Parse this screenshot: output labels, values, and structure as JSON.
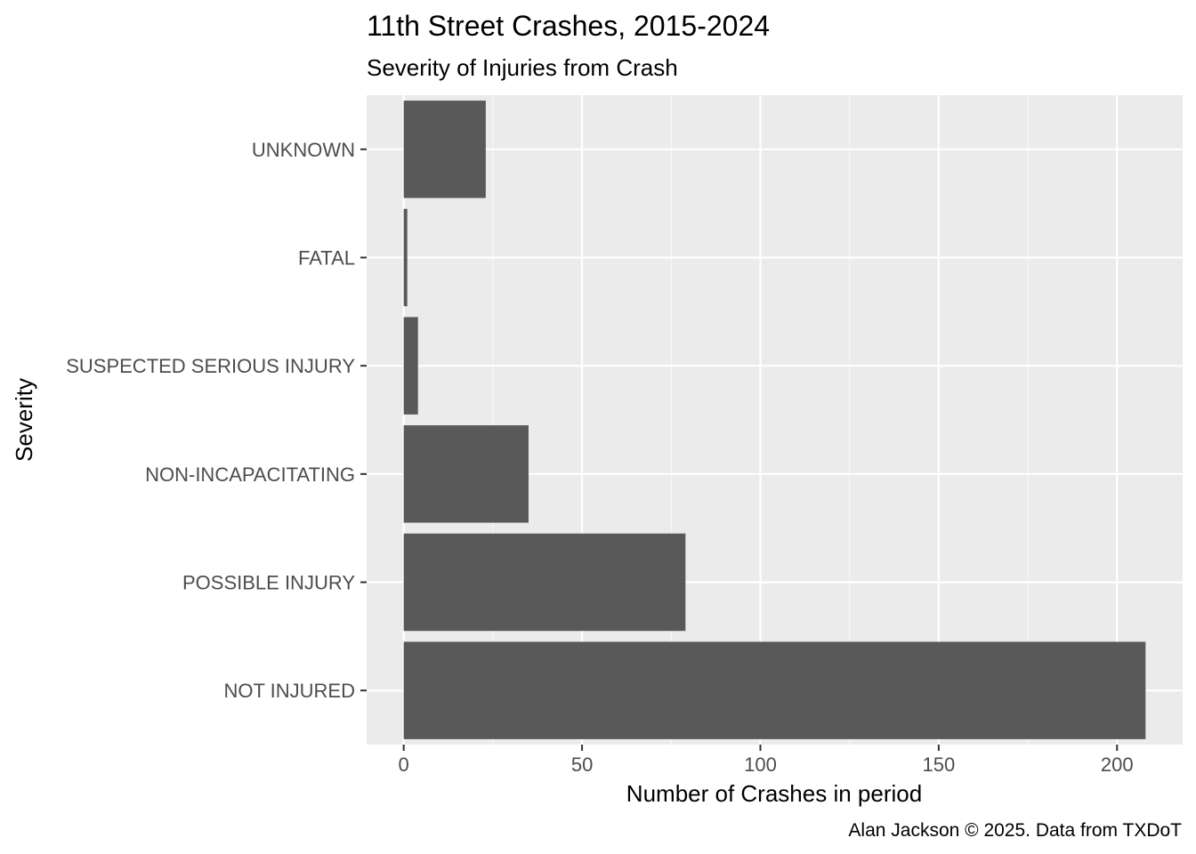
{
  "chart_data": {
    "type": "bar",
    "orientation": "horizontal",
    "title": "11th Street Crashes, 2015-2024",
    "subtitle": "Severity of Injuries from Crash",
    "xlabel": "Number of Crashes in period",
    "ylabel": "Severity",
    "caption": "Alan Jackson © 2025. Data from TXDoT",
    "categories": [
      "NOT INJURED",
      "POSSIBLE INJURY",
      "NON-INCAPACITATING",
      "SUSPECTED SERIOUS INJURY",
      "FATAL",
      "UNKNOWN"
    ],
    "values": [
      208,
      79,
      35,
      4,
      1,
      23
    ],
    "xlim": [
      -10.4,
      218.4
    ],
    "x_ticks": [
      0,
      50,
      100,
      150,
      200
    ],
    "x_tick_labels": [
      "0",
      "50",
      "100",
      "150",
      "200"
    ],
    "grid": true,
    "legend": "none",
    "colors": {
      "bar": "#595959",
      "panel_background": "#ebebeb",
      "grid_major": "#ffffff",
      "grid_minor": "#f7f7f7",
      "tick_label": "#4d4d4d",
      "axis_tick": "#333333"
    }
  }
}
